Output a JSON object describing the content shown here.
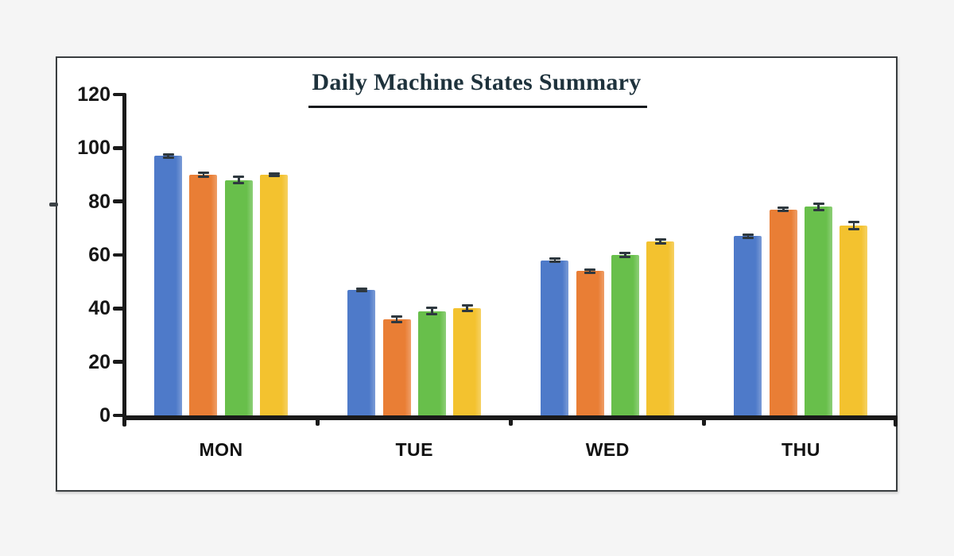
{
  "page": {
    "background": "#f5f5f5",
    "panel_background": "#ffffff",
    "panel_border_color": "#3a3e40"
  },
  "chart_data": {
    "type": "bar",
    "title": "Daily Machine States Summary",
    "title_color": "#1e323c",
    "title_underlined": true,
    "xlabel": "",
    "ylabel": "",
    "categories": [
      "MON",
      "TUE",
      "WED",
      "THU"
    ],
    "series": [
      {
        "name": "blue",
        "color": "#4e7ac9",
        "values": [
          97,
          47,
          58,
          67
        ],
        "errors": [
          0.8,
          0.6,
          0.7,
          0.8
        ]
      },
      {
        "name": "orange",
        "color": "#e97e35",
        "values": [
          90,
          36,
          54,
          77
        ],
        "errors": [
          1.0,
          1.2,
          0.7,
          0.7
        ]
      },
      {
        "name": "green",
        "color": "#68bf4b",
        "values": [
          88,
          39,
          60,
          78
        ],
        "errors": [
          1.4,
          1.4,
          1.0,
          1.3
        ]
      },
      {
        "name": "yellow",
        "color": "#f3c22f",
        "values": [
          90,
          40,
          65,
          71
        ],
        "errors": [
          0.6,
          1.2,
          0.8,
          1.5
        ]
      }
    ],
    "ylim": [
      0,
      120
    ],
    "yticks": [
      0,
      20,
      40,
      60,
      80,
      100,
      120
    ],
    "grid": false,
    "legend": "none",
    "error_bars": true,
    "error_bar_color": "#2e383f",
    "axis_color": "#1a1a1a",
    "tick_label_color": "#161616"
  }
}
